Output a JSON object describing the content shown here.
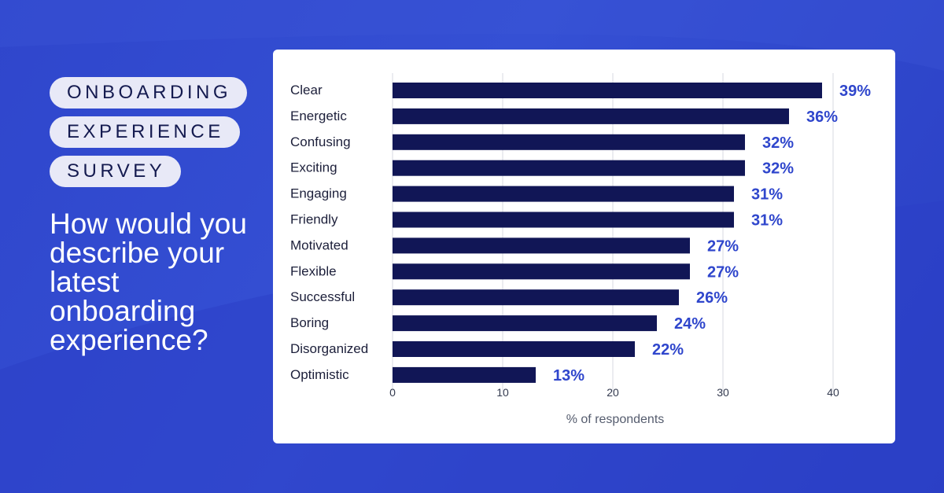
{
  "header": {
    "tags": [
      "ONBOARDING",
      "EXPERIENCE",
      "SURVEY"
    ],
    "question": "How would you describe your latest onboarding experience?"
  },
  "colors": {
    "background": "#2f46cc",
    "bar": "#111656",
    "value_label": "#2f46cc",
    "card": "#ffffff"
  },
  "chart_data": {
    "type": "bar",
    "orientation": "horizontal",
    "categories": [
      "Clear",
      "Energetic",
      "Confusing",
      "Exciting",
      "Engaging",
      "Friendly",
      "Motivated",
      "Flexible",
      "Successful",
      "Boring",
      "Disorganized",
      "Optimistic"
    ],
    "values": [
      39,
      36,
      32,
      32,
      31,
      31,
      27,
      27,
      26,
      24,
      22,
      13
    ],
    "value_labels": [
      "39%",
      "36%",
      "32%",
      "32%",
      "31%",
      "31%",
      "27%",
      "27%",
      "26%",
      "24%",
      "22%",
      "13%"
    ],
    "xlabel": "% of respondents",
    "xticks": [
      0,
      10,
      20,
      30,
      40
    ],
    "xlim": [
      0,
      40
    ],
    "grid": "vertical"
  }
}
